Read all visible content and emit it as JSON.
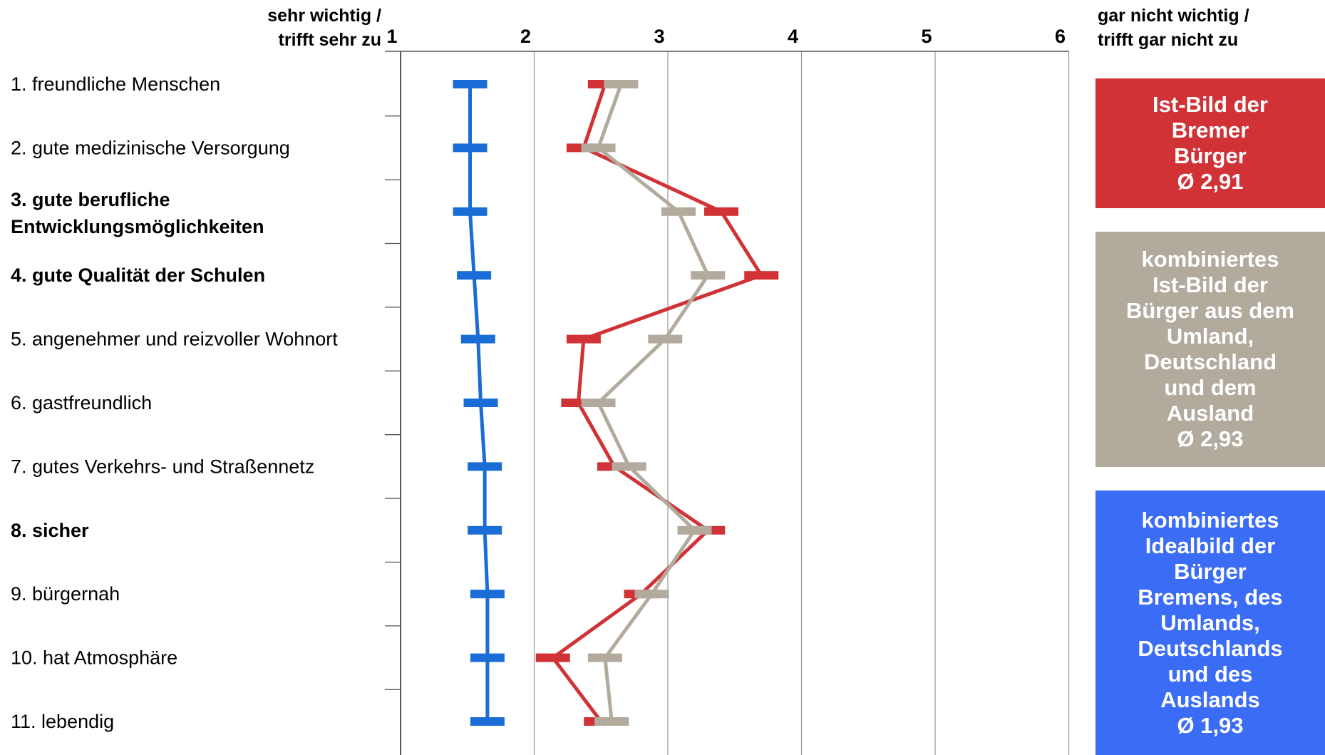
{
  "chart_data": {
    "type": "line",
    "x_axis": {
      "min": 1,
      "max": 6,
      "ticks": [
        "1",
        "2",
        "3",
        "4",
        "5",
        "6"
      ],
      "left_label": "sehr wichtig /\ntrifft sehr zu",
      "right_label": "gar nicht wichtig /\ntrifft gar nicht zu",
      "grid": true,
      "position": "top"
    },
    "categories": [
      {
        "label": "1. freundliche Menschen",
        "bold": false
      },
      {
        "label": "2. gute medizinische Versorgung",
        "bold": false
      },
      {
        "label": "3. gute berufliche\nEntwicklungsmöglichkeiten",
        "bold": true
      },
      {
        "label": "4. gute Qualität der Schulen",
        "bold": true
      },
      {
        "label": "5. angenehmer und reizvoller Wohnort",
        "bold": false
      },
      {
        "label": "6. gastfreundlich",
        "bold": false
      },
      {
        "label": "7. gutes Verkehrs- und Straßennetz",
        "bold": false
      },
      {
        "label": "8. sicher",
        "bold": true
      },
      {
        "label": "9. bürgernah",
        "bold": false
      },
      {
        "label": "10. hat Atmosphäre",
        "bold": false
      },
      {
        "label": "11. lebendig",
        "bold": false
      }
    ],
    "series": [
      {
        "key": "ist_bremen",
        "color": "#d03236",
        "values": [
          2.53,
          2.37,
          3.4,
          3.7,
          2.37,
          2.33,
          2.6,
          3.3,
          2.8,
          2.14,
          2.5
        ]
      },
      {
        "key": "ist_combined",
        "color": "#b2ab9d",
        "values": [
          2.65,
          2.48,
          3.08,
          3.3,
          2.98,
          2.48,
          2.71,
          3.2,
          2.88,
          2.53,
          2.58
        ]
      },
      {
        "key": "ideal_combined",
        "color": "#1a6cd6",
        "values": [
          1.52,
          1.52,
          1.52,
          1.55,
          1.58,
          1.6,
          1.63,
          1.63,
          1.65,
          1.65,
          1.65
        ]
      }
    ]
  },
  "legend": {
    "red": {
      "text": "Ist-Bild der\nBremer\nBürger\nØ 2,91",
      "color": "#d03236"
    },
    "gray": {
      "text": "kombiniertes\nIst-Bild der\nBürger aus dem\nUmland,\nDeutschland\nund dem\nAusland\nØ 2,93",
      "color": "#b2ab9d"
    },
    "blue": {
      "text": "kombiniertes\nIdealbild der\nBürger\nBremens, des\nUmlands,\nDeutschlands\nund des\nAuslands\nØ 1,93",
      "color": "#3b6cf5"
    }
  }
}
